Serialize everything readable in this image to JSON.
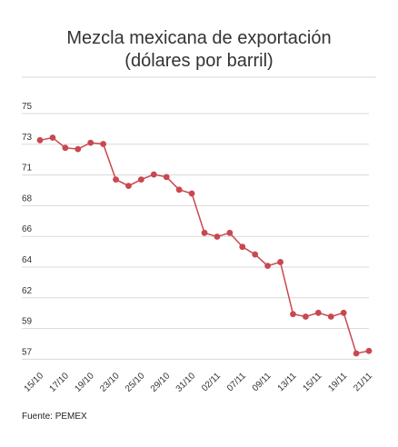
{
  "chart_data": {
    "type": "line",
    "title": [
      "Mezcla mexicana de exportación",
      "(dólares por barril)"
    ],
    "xlabel": "",
    "ylabel": "",
    "yticks": [
      "75",
      "73",
      "71",
      "68",
      "66",
      "64",
      "62",
      "59",
      "57"
    ],
    "ylim": [
      56.2,
      76.6
    ],
    "grid": true,
    "series": [
      {
        "name": "",
        "x": [
          "15/10",
          "16/10",
          "17/10",
          "18/10",
          "19/10",
          "22/10",
          "23/10",
          "24/10",
          "25/10",
          "26/10",
          "29/10",
          "30/10",
          "31/10",
          "01/11",
          "02/11",
          "05/11",
          "07/11",
          "08/11",
          "09/11",
          "12/11",
          "13/11",
          "14/11",
          "15/11",
          "16/11",
          "19/11",
          "20/11",
          "21/11"
        ],
        "y": [
          74.0,
          74.2,
          73.4,
          73.3,
          73.8,
          73.7,
          70.9,
          70.4,
          70.9,
          71.3,
          71.1,
          70.1,
          69.8,
          66.7,
          66.4,
          66.7,
          65.6,
          65.0,
          64.1,
          64.4,
          60.3,
          60.1,
          60.4,
          60.1,
          60.4,
          57.2,
          57.4
        ]
      }
    ],
    "xtick_labels": [
      "15/10",
      "17/10",
      "19/10",
      "23/10",
      "25/10",
      "29/10",
      "31/10",
      "02/11",
      "07/11",
      "09/11",
      "13/11",
      "15/11",
      "19/11",
      "21/11"
    ],
    "colors": {
      "line": "#c9484f",
      "grid": "#d9d9d9",
      "axis": "#333333"
    }
  },
  "source": "Fuente: PEMEX"
}
